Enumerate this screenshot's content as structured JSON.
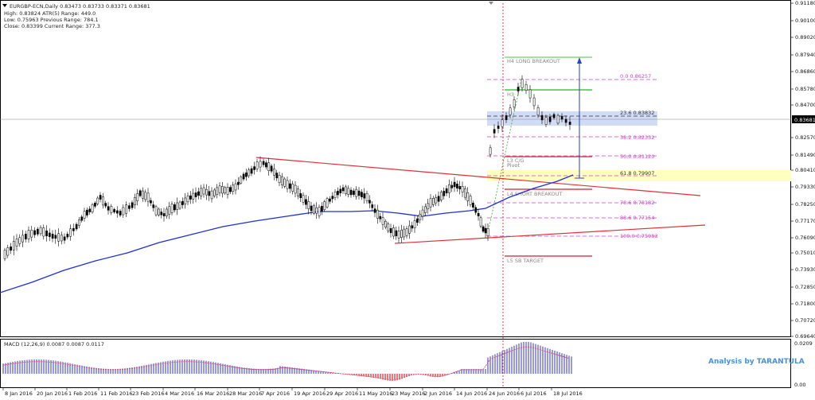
{
  "header": {
    "symbol_line": "EURGBP-ECN,Daily  0.83473 0.83733 0.83371 0.83681",
    "high_line": "High:  0.83824    ATR(5) Range: 449.0",
    "low_line": "Low:    0.75963    Previous Range: 784.1",
    "close_line": "Close: 0.83399    Current Range: 377.3"
  },
  "price_axis": {
    "labels": [
      "0.91180",
      "0.90100",
      "0.89020",
      "0.87940",
      "0.86860",
      "0.85780",
      "0.84700",
      "0.83681",
      "0.82570",
      "0.81490",
      "0.80410",
      "0.79330",
      "0.78250",
      "0.77170",
      "0.76090",
      "0.75010",
      "0.73930",
      "0.72850",
      "0.71800",
      "0.70720",
      "0.69640"
    ],
    "current_price": "0.83681"
  },
  "date_axis": {
    "labels": [
      "8 Jan 2016",
      "20 Jan 2016",
      "1 Feb 2016",
      "11 Feb 2016",
      "23 Feb 2016",
      "4 Mar 2016",
      "16 Mar 2016",
      "28 Mar 2016",
      "7 Apr 2016",
      "19 Apr 2016",
      "29 Apr 2016",
      "11 May 2016",
      "23 May 2016",
      "2 Jun 2016",
      "14 Jun 2016",
      "24 Jun 2016",
      "6 Jul 2016",
      "18 Jul 2016"
    ]
  },
  "levels": {
    "h4": "H4 LONG BREAKOUT",
    "h3": "H3",
    "l3": "L3 C/G",
    "pivot": "Pivot",
    "l4": "L4 SHORT BREAKOUT",
    "l5": "L5 SB TARGET"
  },
  "fibo": {
    "f0": "0.0    0.86257",
    "f236": "23.6    0.83832",
    "f382": "38.2    0.82332",
    "f50": "50.0    0.81120",
    "f618": "61.8    0.79907",
    "f786": "78.6    0.78182",
    "f886": "88.6    0.77154",
    "f100": "100.0    0.75983"
  },
  "macd": {
    "label": "MACD (12,26,9) 0.0087 0.0087 0.0117",
    "top_label": "0.0209",
    "bottom_label": "0.00"
  },
  "credit": "Analysis by TARANTULA",
  "colors": {
    "bull": "#00aa00",
    "bear": "#000000",
    "ma": "#1f2fd0",
    "trend": "#e0303a",
    "fib": "#cc44cc",
    "zone": "#b8c8f0",
    "yellow": "#ffffc0"
  },
  "icons": {
    "symbol_marker": "triangle-down-icon"
  }
}
